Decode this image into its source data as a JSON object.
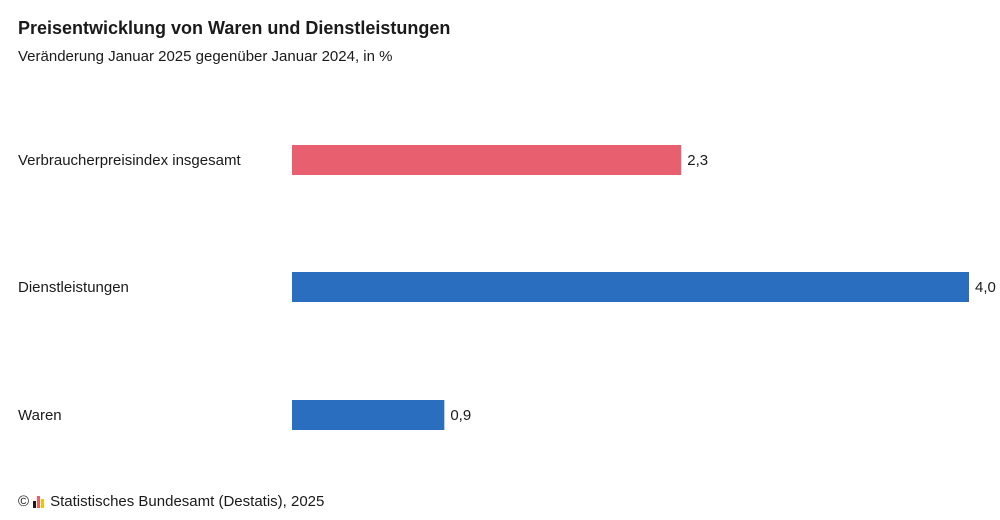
{
  "chart_data": {
    "type": "bar",
    "orientation": "horizontal",
    "title": "Preisentwicklung von Waren und Dienstleistungen",
    "subtitle": "Veränderung Januar 2025 gegenüber Januar 2024, in %",
    "categories": [
      "Verbraucherpreisindex insgesamt",
      "Dienstleistungen",
      "Waren"
    ],
    "values": [
      2.3,
      4.0,
      0.9
    ],
    "value_labels": [
      "2,3",
      "4,0",
      "0,9"
    ],
    "colors": [
      "#e8606f",
      "#2a6ebf",
      "#2a6ebf"
    ],
    "xlim": [
      0,
      4.0
    ],
    "grid": false,
    "legend": "none"
  },
  "footer": {
    "copyright_symbol": "©",
    "source": "Statistisches Bundesamt (Destatis), 2025",
    "logo_colors": [
      "#1a1a1a",
      "#e8606f",
      "#f2c200"
    ]
  }
}
